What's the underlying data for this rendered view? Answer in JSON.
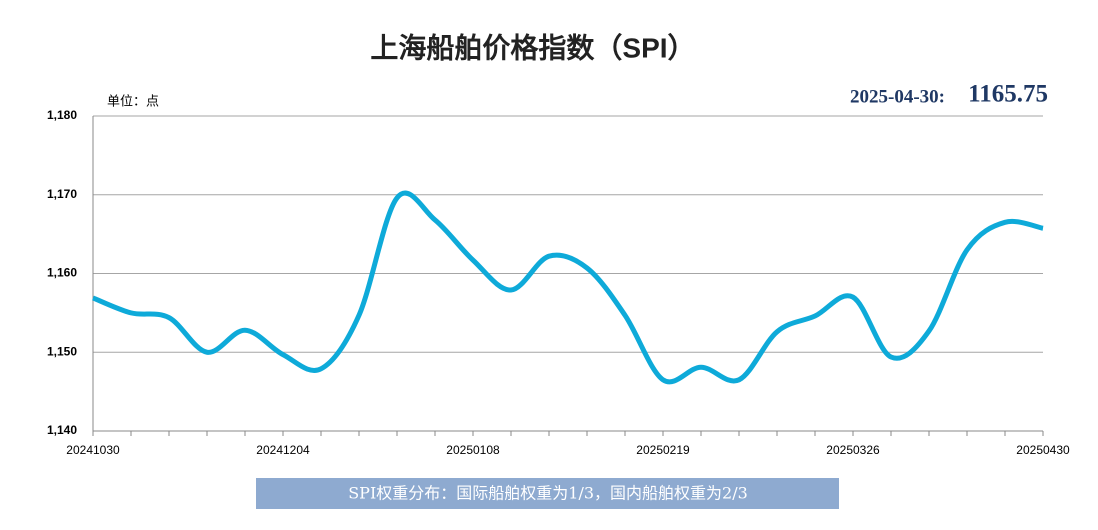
{
  "chart_data": {
    "type": "line",
    "title": "上海船舶价格指数（SPI）",
    "unit_label": "单位：点",
    "annotation_date": "2025-04-30:",
    "footer": "SPI权重分布：国际船舶权重为1/3，国内船舶权重为2/3",
    "categories": [
      "20241030",
      null,
      null,
      null,
      null,
      "20241204",
      null,
      null,
      null,
      null,
      "20250108",
      null,
      null,
      null,
      null,
      "20250219",
      null,
      null,
      null,
      null,
      "20250326",
      null,
      null,
      null,
      null,
      "20250430"
    ],
    "values": [
      1156.9,
      1155.0,
      1154.4,
      1150.0,
      1152.8,
      1149.7,
      1147.9,
      1154.7,
      1169.6,
      1166.8,
      1161.7,
      1157.9,
      1162.2,
      1160.7,
      1154.7,
      1146.5,
      1148.1,
      1146.5,
      1152.6,
      1154.6,
      1157.0,
      1149.4,
      1152.7,
      1163.0,
      1166.5,
      1165.75
    ],
    "color": "#0eaad9",
    "ylim": [
      1140,
      1180
    ],
    "yticks": [
      {
        "value": 1140,
        "label": "1,140"
      },
      {
        "value": 1150,
        "label": "1,150"
      },
      {
        "value": 1160,
        "label": "1,160"
      },
      {
        "value": 1170,
        "label": "1,170"
      },
      {
        "value": 1180,
        "label": "1,180"
      }
    ],
    "grid": true
  }
}
